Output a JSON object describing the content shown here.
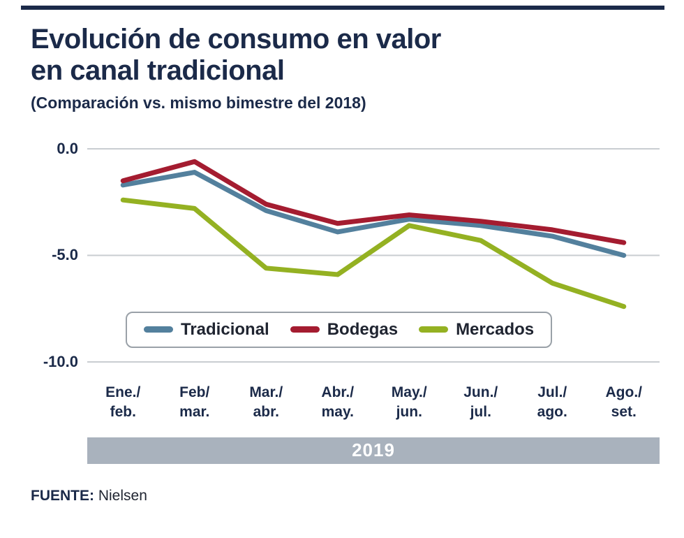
{
  "header": {
    "title_line1": "Evolución de consumo en valor",
    "title_line2": "en canal tradicional",
    "subtitle": "(Comparación vs. mismo bimestre del 2018)"
  },
  "band": {
    "label": "2019"
  },
  "footer": {
    "source_label": "FUENTE:",
    "source_value": "Nielsen"
  },
  "colors": {
    "accent_navy": "#1b2a49",
    "band_gray": "#a9b2bd",
    "gridline_gray": "#c9cdd1",
    "tradicional_blue": "#53809d",
    "bodegas_red": "#a41c30",
    "mercados_green": "#94b122"
  },
  "chart_data": {
    "type": "line",
    "title": "Evolución de consumo en valor en canal tradicional",
    "subtitle": "(Comparación vs. mismo bimestre del 2018)",
    "x_axis_group_label": "2019",
    "categories": [
      {
        "line1": "Ene./",
        "line2": "feb."
      },
      {
        "line1": "Feb/",
        "line2": "mar."
      },
      {
        "line1": "Mar./",
        "line2": "abr."
      },
      {
        "line1": "Abr./",
        "line2": "may."
      },
      {
        "line1": "May./",
        "line2": "jun."
      },
      {
        "line1": "Jun./",
        "line2": "jul."
      },
      {
        "line1": "Jul./",
        "line2": "ago."
      },
      {
        "line1": "Ago./",
        "line2": "set."
      }
    ],
    "series": [
      {
        "name": "Tradicional",
        "color": "#53809d",
        "values": [
          -1.7,
          -1.1,
          -2.9,
          -3.9,
          -3.3,
          -3.6,
          -4.1,
          -5.0
        ]
      },
      {
        "name": "Bodegas",
        "color": "#a41c30",
        "values": [
          -1.5,
          -0.6,
          -2.6,
          -3.5,
          -3.1,
          -3.4,
          -3.8,
          -4.4
        ]
      },
      {
        "name": "Mercados",
        "color": "#94b122",
        "values": [
          -2.4,
          -2.8,
          -5.6,
          -5.9,
          -3.6,
          -4.3,
          -6.3,
          -7.4
        ]
      }
    ],
    "yticks": [
      {
        "value": 0,
        "label": "0.0"
      },
      {
        "value": -5,
        "label": "-5.0"
      },
      {
        "value": -10,
        "label": "-10.0"
      }
    ],
    "ylim": [
      -10,
      0
    ],
    "grid": "horizontal",
    "legend_position": "inside-bottom",
    "legend": [
      "Tradicional",
      "Bodegas",
      "Mercados"
    ],
    "source": "Nielsen"
  }
}
